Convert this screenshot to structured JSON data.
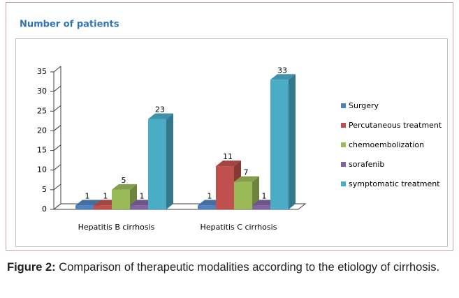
{
  "chart_data": {
    "type": "bar3d",
    "title": "Number of patients",
    "categories": [
      "Hepatitis B cirrhosis",
      "Hepatitis C cirrhosis"
    ],
    "series": [
      {
        "name": "Surgery",
        "color": "#4f81bd",
        "values": [
          1,
          1
        ]
      },
      {
        "name": "Percutaneous treatment",
        "color": "#c0504d",
        "values": [
          1,
          11
        ]
      },
      {
        "name": "chemoembolization",
        "color": "#9bbb59",
        "values": [
          5,
          7
        ]
      },
      {
        "name": "sorafenib",
        "color": "#8064a2",
        "values": [
          1,
          1
        ]
      },
      {
        "name": "symptomatic treatment",
        "color": "#4bacc6",
        "values": [
          23,
          33
        ]
      }
    ],
    "ylim": [
      0,
      35
    ],
    "yticks": [
      0,
      5,
      10,
      15,
      20,
      25,
      30,
      35
    ],
    "legend": "right",
    "grid": false
  },
  "figure": {
    "label": "Figure 2:",
    "text": "Comparison of therapeutic modalities according to the etiology of cirrhosis."
  }
}
